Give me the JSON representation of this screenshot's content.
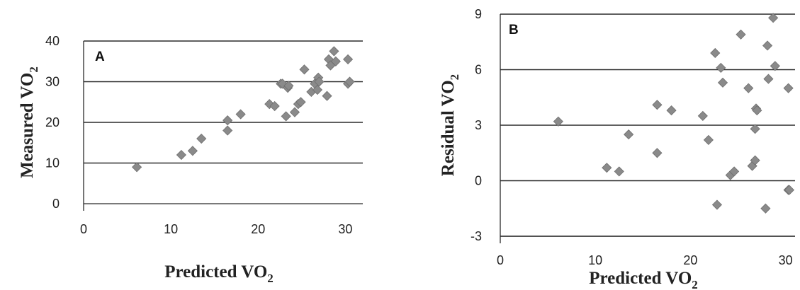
{
  "chart_data": [
    {
      "type": "scatter",
      "panel_label": "A",
      "xlabel_main": "Predicted VO",
      "xlabel_sub": "2",
      "ylabel_main": "Measured VO",
      "ylabel_sub": "2",
      "xlim": [
        0,
        32
      ],
      "ylim": [
        0,
        40
      ],
      "xticks": [
        "0",
        "10",
        "20",
        "30"
      ],
      "yticks": [
        "0",
        "10",
        "20",
        "30",
        "40"
      ],
      "grid": true,
      "x": [
        6.1,
        11.2,
        12.5,
        13.5,
        16.5,
        16.5,
        18,
        21.3,
        21.9,
        22.6,
        22.8,
        23.2,
        23.4,
        23.5,
        24.2,
        24.6,
        24.9,
        25.3,
        26.1,
        26.5,
        26.8,
        26.9,
        27.0,
        27.9,
        28.1,
        28.3,
        28.7,
        28.9,
        30.3,
        30.3,
        30.5
      ],
      "y": [
        9,
        12,
        13,
        16,
        18,
        20.5,
        22,
        24.5,
        24,
        29.5,
        29.5,
        21.5,
        28.5,
        29,
        22.5,
        24.5,
        25,
        33,
        27.5,
        29.5,
        28,
        31,
        30,
        26.5,
        35.5,
        34,
        37.5,
        35,
        35.5,
        29.5,
        30
      ]
    },
    {
      "type": "scatter",
      "panel_label": "B",
      "xlabel_main": "Predicted VO",
      "xlabel_sub": "2",
      "ylabel_main": "Residual VO",
      "ylabel_sub": "2",
      "xlim": [
        0,
        31
      ],
      "ylim": [
        -3,
        9
      ],
      "xticks": [
        "0",
        "10",
        "20",
        "30"
      ],
      "yticks": [
        "-3",
        "0",
        "3",
        "6",
        "9"
      ],
      "grid": true,
      "x": [
        6.1,
        11.2,
        12.5,
        13.5,
        16.5,
        16.5,
        18,
        21.3,
        21.9,
        22.6,
        22.8,
        23.2,
        23.4,
        24.2,
        24.6,
        25.3,
        26.1,
        26.5,
        26.8,
        26.9,
        26.8,
        27.0,
        27.9,
        28.1,
        28.2,
        28.7,
        28.9,
        30.3,
        30.3,
        30.4
      ],
      "y": [
        3.2,
        0.7,
        0.5,
        2.5,
        4.1,
        1.5,
        3.8,
        3.5,
        2.2,
        6.9,
        -1.3,
        6.1,
        5.3,
        0.3,
        0.5,
        7.9,
        5.0,
        0.8,
        2.8,
        3.9,
        1.1,
        3.8,
        -1.5,
        7.3,
        5.5,
        8.8,
        6.2,
        5.0,
        -0.5,
        -0.5
      ]
    }
  ]
}
